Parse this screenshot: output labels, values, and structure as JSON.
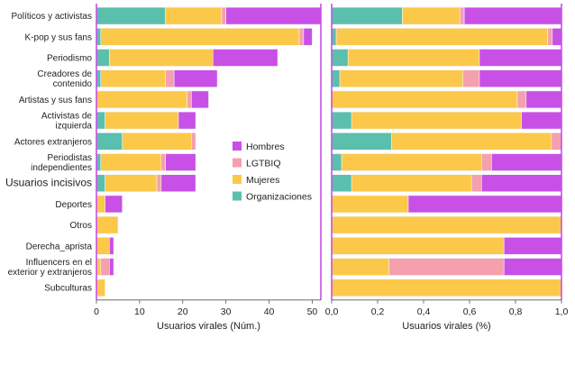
{
  "chart_data": {
    "type": "bar",
    "orientation": "horizontal",
    "stacked": true,
    "categories": [
      "Políticos y activistas",
      "K-pop y sus fans",
      "Periodismo",
      "Creadores de contenido",
      "Artistas y sus fans",
      "Activistas de izquierda",
      "Actores extranjeros",
      "Periodistas independientes",
      "Usuarios incisivos",
      "Deportes",
      "Otros",
      "Derecha_aprista",
      "Influencers en el exterior y extranjeros",
      "Subculturas"
    ],
    "category_lines": [
      [
        "Políticos y activistas"
      ],
      [
        "K-pop y sus fans"
      ],
      [
        "Periodismo"
      ],
      [
        "Creadores de",
        "contenido"
      ],
      [
        "Artistas y sus fans"
      ],
      [
        "Activistas de",
        "izquierda"
      ],
      [
        "Actores extranjeros"
      ],
      [
        "Periodistas",
        "independientes"
      ],
      [
        "Usuarios incisivos"
      ],
      [
        "Deportes"
      ],
      [
        "Otros"
      ],
      [
        "Derecha_aprista"
      ],
      [
        "Influencers en el",
        "exterior y extranjeros"
      ],
      [
        "Subculturas"
      ]
    ],
    "series": [
      {
        "name": "Organizaciones",
        "color": "#5bbfae",
        "values": [
          16,
          1,
          3,
          1,
          0,
          2,
          6,
          1,
          2,
          0,
          0,
          0,
          0,
          0
        ]
      },
      {
        "name": "Mujeres",
        "color": "#fcc84a",
        "values": [
          13,
          46,
          24,
          15,
          21,
          17,
          16,
          14,
          12,
          2,
          5,
          3,
          1,
          2
        ]
      },
      {
        "name": "LGTBIQ",
        "color": "#f4a0ae",
        "values": [
          1,
          1,
          0,
          2,
          1,
          0,
          1,
          1,
          1,
          0,
          0,
          0,
          2,
          0
        ]
      },
      {
        "name": "Hombres",
        "color": "#c850e6",
        "values": [
          22,
          2,
          15,
          10,
          4,
          4,
          0,
          7,
          8,
          4,
          0,
          1,
          1,
          0
        ]
      }
    ],
    "legend_order": [
      "Hombres",
      "LGTBIQ",
      "Mujeres",
      "Organizaciones"
    ],
    "legend_position": "center",
    "panels": [
      {
        "mode": "absolute",
        "xlabel": "Usuarios virales (Núm.)",
        "xlim": [
          0,
          52
        ],
        "ticks": [
          "0",
          "10",
          "20",
          "30",
          "40",
          "50"
        ],
        "tick_values": [
          0,
          10,
          20,
          30,
          40,
          50
        ]
      },
      {
        "mode": "proportion",
        "xlabel": "Usuarios virales (%)",
        "xlim": [
          0,
          1
        ],
        "ticks": [
          "0,0",
          "0,2",
          "0,4",
          "0,6",
          "0,8",
          "1,0"
        ],
        "tick_values": [
          0,
          0.2,
          0.4,
          0.6,
          0.8,
          1.0
        ]
      }
    ],
    "highlighted_category": "Usuarios incisivos",
    "colors": {
      "panel_border": "#c850e6",
      "bar_border": "#f3f3f3"
    }
  }
}
